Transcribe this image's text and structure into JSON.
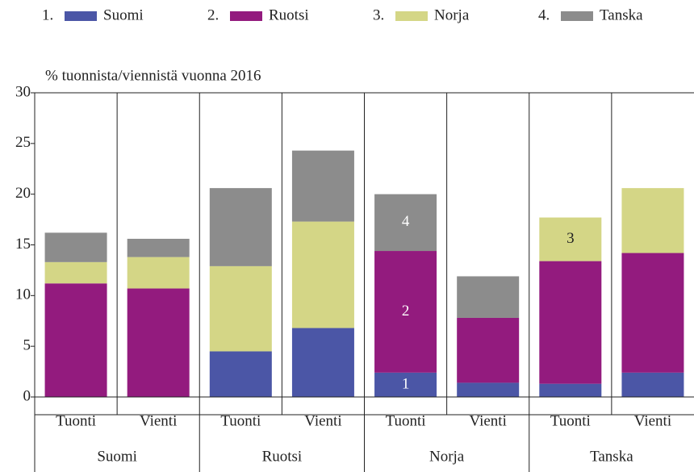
{
  "chart_data": {
    "type": "stacked-bar",
    "y_label": "% tuonnista/viennistä vuonna 2016",
    "groups": [
      "Suomi",
      "Ruotsi",
      "Norja",
      "Tanska"
    ],
    "categories": [
      "Tuonti",
      "Vienti",
      "Tuonti",
      "Vienti",
      "Tuonti",
      "Vienti",
      "Tuonti",
      "Vienti"
    ],
    "series": [
      {
        "number": "1.",
        "name": "Suomi",
        "color": "#4b56a6",
        "values": [
          0,
          0,
          4.5,
          6.8,
          2.4,
          1.4,
          1.3,
          2.4
        ]
      },
      {
        "number": "2.",
        "name": "Ruotsi",
        "color": "#931b7e",
        "values": [
          11.2,
          10.7,
          0,
          0,
          12.0,
          6.4,
          12.1,
          11.8
        ]
      },
      {
        "number": "3.",
        "name": "Norja",
        "color": "#d4d686",
        "values": [
          2.1,
          3.1,
          8.4,
          10.5,
          0,
          0,
          4.3,
          6.4
        ]
      },
      {
        "number": "4.",
        "name": "Tanska",
        "color": "#8c8c8c",
        "values": [
          2.9,
          1.8,
          7.7,
          7.0,
          5.6,
          4.1,
          0,
          0
        ]
      }
    ],
    "annotations": [
      {
        "text": "1",
        "series": 0,
        "index": 4
      },
      {
        "text": "2",
        "series": 1,
        "index": 4
      },
      {
        "text": "4",
        "series": 3,
        "index": 4
      },
      {
        "text": "3",
        "series": 2,
        "index": 6
      }
    ],
    "ylim": [
      0,
      30
    ],
    "yticks": [
      0,
      5,
      10,
      15,
      20,
      25,
      30
    ]
  }
}
